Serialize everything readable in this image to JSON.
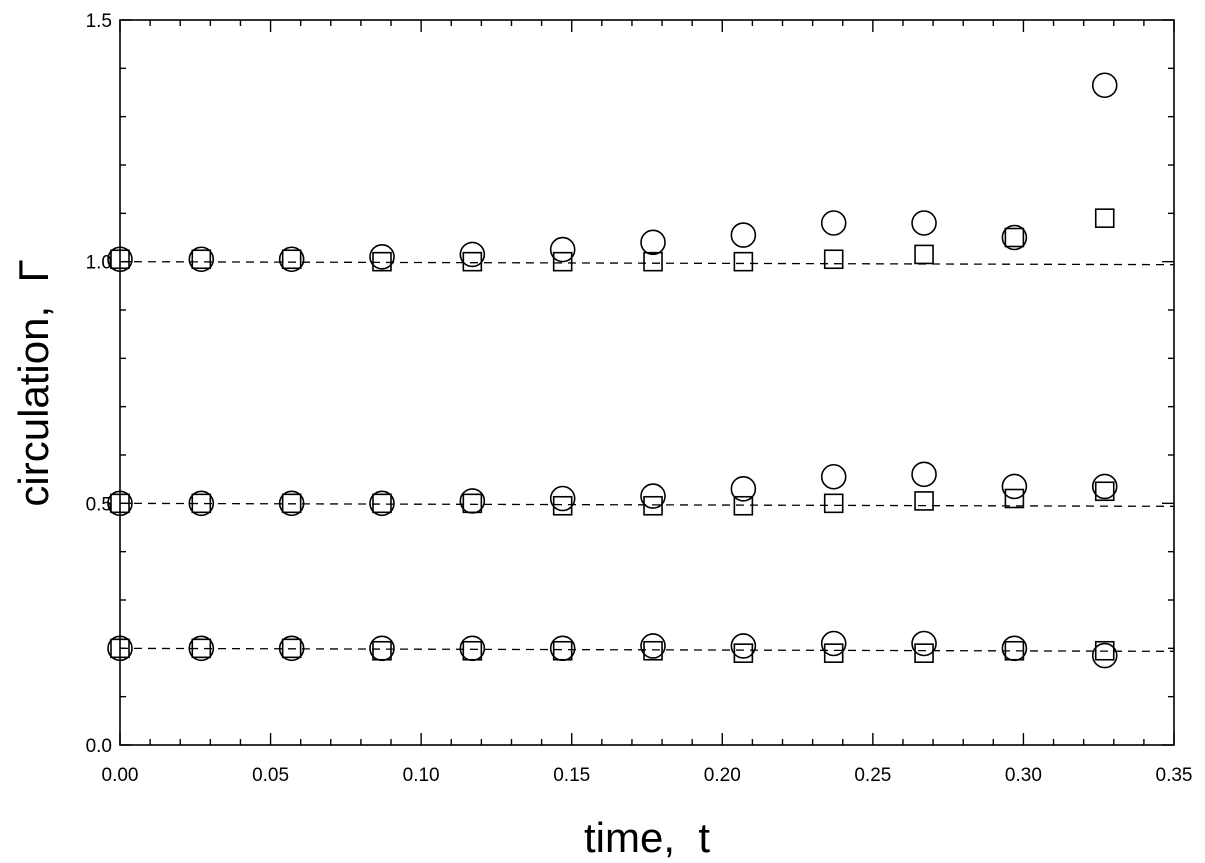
{
  "chart_data": {
    "type": "scatter",
    "title": "",
    "xlabel": "time,  t",
    "ylabel": "circulation,  Γ",
    "xlim": [
      0.0,
      0.35
    ],
    "ylim": [
      0.0,
      1.5
    ],
    "x_ticks": [
      "0.00",
      "0.05",
      "0.10",
      "0.15",
      "0.20",
      "0.25",
      "0.30",
      "0.35"
    ],
    "y_ticks": [
      "0.0",
      "0.5",
      "1.0",
      "1.5"
    ],
    "grid": false,
    "legend": "none",
    "reference_lines": [
      {
        "style": "dashed",
        "y": 1.0
      },
      {
        "style": "dashed",
        "y": 0.5
      },
      {
        "style": "dashed",
        "y": 0.2
      }
    ],
    "series": [
      {
        "marker": "circle",
        "points": [
          [
            0.0,
            1.005
          ],
          [
            0.027,
            1.005
          ],
          [
            0.057,
            1.005
          ],
          [
            0.087,
            1.01
          ],
          [
            0.117,
            1.015
          ],
          [
            0.147,
            1.025
          ],
          [
            0.177,
            1.04
          ],
          [
            0.207,
            1.055
          ],
          [
            0.237,
            1.08
          ],
          [
            0.267,
            1.08
          ],
          [
            0.297,
            1.05
          ],
          [
            0.327,
            1.365
          ],
          [
            0.0,
            0.5
          ],
          [
            0.027,
            0.5
          ],
          [
            0.057,
            0.5
          ],
          [
            0.087,
            0.5
          ],
          [
            0.117,
            0.505
          ],
          [
            0.147,
            0.51
          ],
          [
            0.177,
            0.515
          ],
          [
            0.207,
            0.53
          ],
          [
            0.237,
            0.555
          ],
          [
            0.267,
            0.56
          ],
          [
            0.297,
            0.535
          ],
          [
            0.327,
            0.535
          ],
          [
            0.0,
            0.2
          ],
          [
            0.027,
            0.2
          ],
          [
            0.057,
            0.2
          ],
          [
            0.087,
            0.2
          ],
          [
            0.117,
            0.2
          ],
          [
            0.147,
            0.2
          ],
          [
            0.177,
            0.205
          ],
          [
            0.207,
            0.205
          ],
          [
            0.237,
            0.21
          ],
          [
            0.267,
            0.21
          ],
          [
            0.297,
            0.2
          ],
          [
            0.327,
            0.185
          ]
        ]
      },
      {
        "marker": "square",
        "points": [
          [
            0.0,
            1.005
          ],
          [
            0.027,
            1.005
          ],
          [
            0.057,
            1.005
          ],
          [
            0.087,
            1.0
          ],
          [
            0.117,
            1.0
          ],
          [
            0.147,
            1.0
          ],
          [
            0.177,
            1.0
          ],
          [
            0.207,
            1.0
          ],
          [
            0.237,
            1.005
          ],
          [
            0.267,
            1.015
          ],
          [
            0.297,
            1.05
          ],
          [
            0.327,
            1.09
          ],
          [
            0.0,
            0.5
          ],
          [
            0.027,
            0.5
          ],
          [
            0.057,
            0.5
          ],
          [
            0.087,
            0.5
          ],
          [
            0.117,
            0.5
          ],
          [
            0.147,
            0.495
          ],
          [
            0.177,
            0.495
          ],
          [
            0.207,
            0.495
          ],
          [
            0.237,
            0.5
          ],
          [
            0.267,
            0.505
          ],
          [
            0.297,
            0.51
          ],
          [
            0.327,
            0.525
          ],
          [
            0.0,
            0.2
          ],
          [
            0.027,
            0.2
          ],
          [
            0.057,
            0.2
          ],
          [
            0.087,
            0.195
          ],
          [
            0.117,
            0.195
          ],
          [
            0.147,
            0.195
          ],
          [
            0.177,
            0.195
          ],
          [
            0.207,
            0.19
          ],
          [
            0.237,
            0.19
          ],
          [
            0.267,
            0.19
          ],
          [
            0.297,
            0.195
          ],
          [
            0.327,
            0.195
          ]
        ]
      }
    ]
  }
}
